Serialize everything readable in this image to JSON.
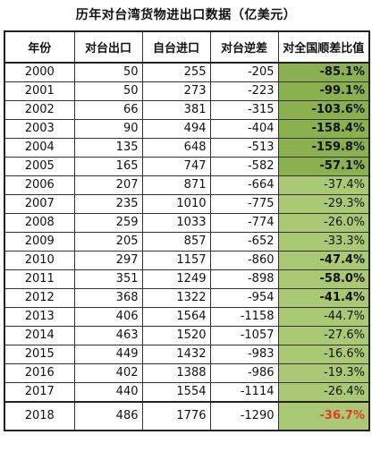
{
  "title": "历年对台湾货物进出口数据（亿美元）",
  "columns": [
    "年份",
    "对台出口",
    "自台进口",
    "对台逆差",
    "对全国顺差比值"
  ],
  "rows": [
    {
      "year": "2000",
      "export": "50",
      "import": "255",
      "deficit": "-205",
      "ratio": "-85.1%",
      "bold": true,
      "red": false
    },
    {
      "year": "2001",
      "export": "50",
      "import": "273",
      "deficit": "-223",
      "ratio": "-99.1%",
      "bold": true,
      "red": false
    },
    {
      "year": "2002",
      "export": "66",
      "import": "381",
      "deficit": "-315",
      "ratio": "-103.6%",
      "bold": true,
      "red": false
    },
    {
      "year": "2003",
      "export": "90",
      "import": "494",
      "deficit": "-404",
      "ratio": "-158.4%",
      "bold": true,
      "red": false
    },
    {
      "year": "2004",
      "export": "135",
      "import": "648",
      "deficit": "-513",
      "ratio": "-159.8%",
      "bold": true,
      "red": false
    },
    {
      "year": "2005",
      "export": "165",
      "import": "747",
      "deficit": "-582",
      "ratio": "-57.1%",
      "bold": true,
      "red": false
    },
    {
      "year": "2006",
      "export": "207",
      "import": "871",
      "deficit": "-664",
      "ratio": "-37.4%",
      "bold": false,
      "red": false
    },
    {
      "year": "2007",
      "export": "235",
      "import": "1010",
      "deficit": "-775",
      "ratio": "-29.3%",
      "bold": false,
      "red": false
    },
    {
      "year": "2008",
      "export": "259",
      "import": "1033",
      "deficit": "-774",
      "ratio": "-26.0%",
      "bold": false,
      "red": false
    },
    {
      "year": "2009",
      "export": "205",
      "import": "857",
      "deficit": "-652",
      "ratio": "-33.3%",
      "bold": false,
      "red": false
    },
    {
      "year": "2010",
      "export": "297",
      "import": "1157",
      "deficit": "-860",
      "ratio": "-47.4%",
      "bold": true,
      "red": false
    },
    {
      "year": "2011",
      "export": "351",
      "import": "1249",
      "deficit": "-898",
      "ratio": "-58.0%",
      "bold": true,
      "red": false
    },
    {
      "year": "2012",
      "export": "368",
      "import": "1322",
      "deficit": "-954",
      "ratio": "-41.4%",
      "bold": true,
      "red": false
    },
    {
      "year": "2013",
      "export": "406",
      "import": "1564",
      "deficit": "-1158",
      "ratio": "-44.7%",
      "bold": false,
      "red": false
    },
    {
      "year": "2014",
      "export": "463",
      "import": "1520",
      "deficit": "-1057",
      "ratio": "-27.6%",
      "bold": false,
      "red": false
    },
    {
      "year": "2015",
      "export": "449",
      "import": "1432",
      "deficit": "-983",
      "ratio": "-16.6%",
      "bold": false,
      "red": false
    },
    {
      "year": "2016",
      "export": "402",
      "import": "1388",
      "deficit": "-986",
      "ratio": "-19.3%",
      "bold": false,
      "red": false
    },
    {
      "year": "2017",
      "export": "440",
      "import": "1554",
      "deficit": "-1114",
      "ratio": "-26.4%",
      "bold": false,
      "red": false
    },
    {
      "year": "2018",
      "export": "486",
      "import": "1776",
      "deficit": "-1290",
      "ratio": "-36.7%",
      "bold": true,
      "red": true
    }
  ]
}
